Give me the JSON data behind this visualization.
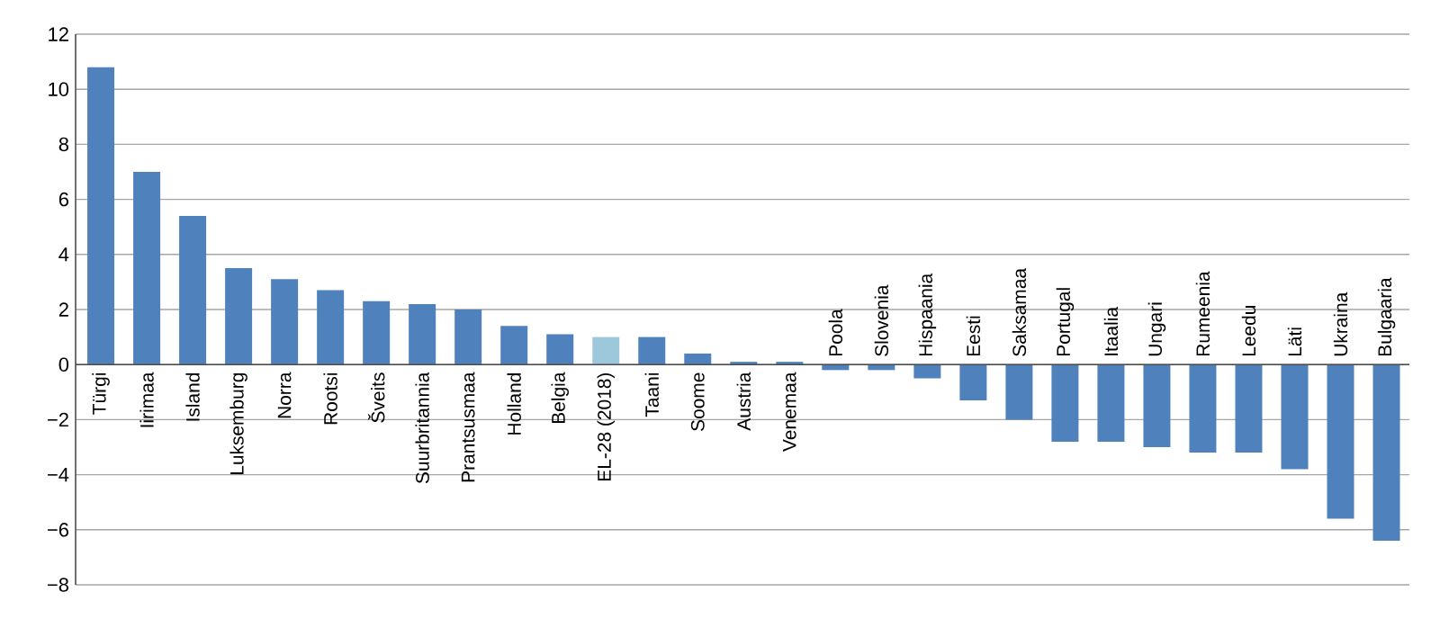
{
  "chart_data": {
    "type": "bar",
    "categories": [
      "Türgi",
      "Iirimaa",
      "Island",
      "Luksemburg",
      "Norra",
      "Rootsi",
      "Šveits",
      "Suurbritannia",
      "Prantsusmaa",
      "Holland",
      "Belgia",
      "EL-28 (2018)",
      "Taani",
      "Soome",
      "Austria",
      "Venemaa",
      "Poola",
      "Slovenia",
      "Hispaania",
      "Eesti",
      "Saksamaa",
      "Portugal",
      "Itaalia",
      "Ungari",
      "Rumeenia",
      "Leedu",
      "Läti",
      "Ukraina",
      "Bulgaaria"
    ],
    "values": [
      10.8,
      7.0,
      5.4,
      3.5,
      3.1,
      2.7,
      2.3,
      2.2,
      2.0,
      1.4,
      1.1,
      1.0,
      1.0,
      0.4,
      0.1,
      0.1,
      -0.2,
      -0.2,
      -0.5,
      -1.3,
      -2.0,
      -2.8,
      -2.8,
      -3.0,
      -3.2,
      -3.2,
      -3.8,
      -5.6,
      -6.4
    ],
    "colors": [
      "#4f81bd",
      "#4f81bd",
      "#4f81bd",
      "#4f81bd",
      "#4f81bd",
      "#4f81bd",
      "#4f81bd",
      "#4f81bd",
      "#4f81bd",
      "#4f81bd",
      "#4f81bd",
      "#9dc8dc",
      "#4f81bd",
      "#4f81bd",
      "#4f81bd",
      "#4f81bd",
      "#4f81bd",
      "#4f81bd",
      "#4f81bd",
      "#4f81bd",
      "#4f81bd",
      "#4f81bd",
      "#4f81bd",
      "#4f81bd",
      "#4f81bd",
      "#4f81bd",
      "#4f81bd",
      "#4f81bd",
      "#4f81bd"
    ],
    "ylim": [
      -8,
      12
    ],
    "yticks": [
      {
        "value": -8,
        "label": "−8"
      },
      {
        "value": -6,
        "label": "−6"
      },
      {
        "value": -4,
        "label": "−4"
      },
      {
        "value": -2,
        "label": "−2"
      },
      0,
      2,
      4,
      6,
      8,
      10,
      12
    ],
    "grid": "y"
  }
}
